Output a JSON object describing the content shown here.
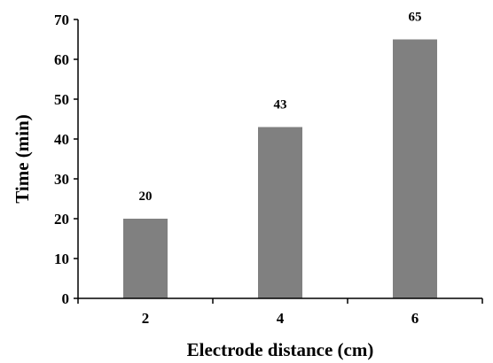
{
  "chart_data": {
    "type": "bar",
    "categories": [
      "2",
      "4",
      "6"
    ],
    "values": [
      20,
      43,
      65
    ],
    "data_labels": [
      "20",
      "43",
      "65"
    ],
    "title": "",
    "xlabel": "Electrode distance (cm)",
    "ylabel": "Time (min)",
    "ylim": [
      0,
      70
    ],
    "yticks": [
      "0",
      "10",
      "20",
      "30",
      "40",
      "50",
      "60",
      "70"
    ],
    "grid": false,
    "legend": "none",
    "bar_color": "#808080",
    "axis_color": "#000000"
  }
}
